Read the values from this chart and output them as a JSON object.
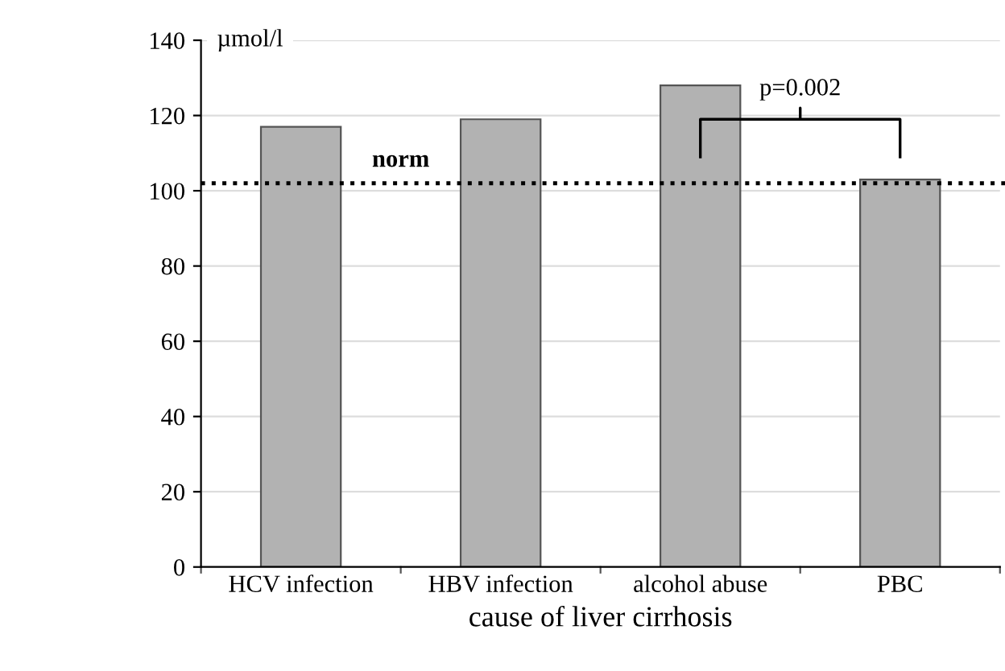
{
  "chart_data": {
    "type": "bar",
    "ylabel": "µmol/l",
    "xlabel": "cause of liver cirrhosis",
    "categories": [
      "HCV infection",
      "HBV infection",
      "alcohol abuse",
      "PBC"
    ],
    "values": [
      117,
      119,
      128,
      103
    ],
    "color": "#b2b2b2",
    "ylim": [
      0,
      140
    ],
    "yticks": [
      0,
      20,
      40,
      60,
      80,
      100,
      120,
      140
    ],
    "grid": "y",
    "ref_lines": [
      {
        "axis": "y",
        "value": 102,
        "label": "norm",
        "line_style": "dotted",
        "color": "#000000"
      }
    ],
    "annotations": [
      "p=0.002"
    ]
  }
}
